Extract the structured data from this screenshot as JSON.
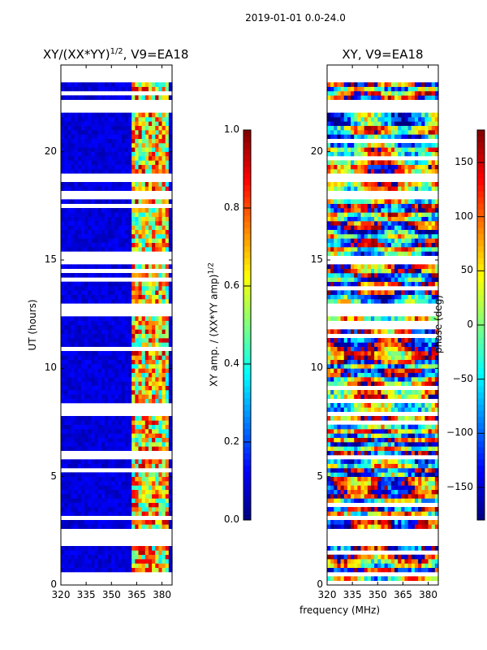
{
  "suptitle": "2019-01-01 0.0-24.0",
  "xlabel_shared": "frequency (MHz)",
  "chart_data": [
    {
      "type": "heatmap",
      "title_main": "XY/(XX*YY)",
      "title_sup": "1/2",
      "title_tail": ", V9=EA18",
      "xlabel": "",
      "ylabel": "UT (hours)",
      "xlim": [
        320,
        386
      ],
      "ylim": [
        0,
        24
      ],
      "data_ut_range": [
        0.2,
        23.2
      ],
      "xticks": [
        320,
        335,
        350,
        365,
        380
      ],
      "yticks": [
        0,
        5,
        10,
        15,
        20
      ],
      "bright_channel_range_mhz": [
        362,
        383
      ],
      "blank_ut_rows": [
        0.4,
        1.9,
        2.3,
        5.8,
        7.8,
        12.5,
        12.6,
        12.7,
        14.9,
        17.9,
        18.7,
        21.8,
        22.1
      ],
      "colormap": "jet",
      "colorbar": {
        "label_main": "XY amp. / (XX*YY amp)",
        "label_sup": "1/2",
        "range": [
          0.0,
          1.0
        ],
        "ticks": [
          "0.0",
          "0.2",
          "0.4",
          "0.6",
          "0.8",
          "1.0"
        ]
      }
    },
    {
      "type": "heatmap",
      "title": "XY, V9=EA18",
      "xlabel": "frequency (MHz)",
      "ylabel": "",
      "xlim": [
        320,
        386
      ],
      "ylim": [
        0,
        24
      ],
      "data_ut_range": [
        0.2,
        23.2
      ],
      "xticks": [
        320,
        335,
        350,
        365,
        380
      ],
      "yticks": [
        0,
        5,
        10,
        15,
        20
      ],
      "blank_ut_rows": [
        0.4,
        1.9,
        2.3,
        5.8,
        7.8,
        12.5,
        12.6,
        12.7,
        14.9,
        17.9,
        18.7,
        21.8,
        22.1
      ],
      "colormap": "jet",
      "colorbar": {
        "label": "phase (deg)",
        "range": [
          -180,
          180
        ],
        "ticks": [
          "150",
          "100",
          "50",
          "0",
          "−50",
          "−100",
          "−150"
        ],
        "tick_values": [
          150,
          100,
          50,
          0,
          -50,
          -100,
          -150
        ]
      }
    }
  ]
}
